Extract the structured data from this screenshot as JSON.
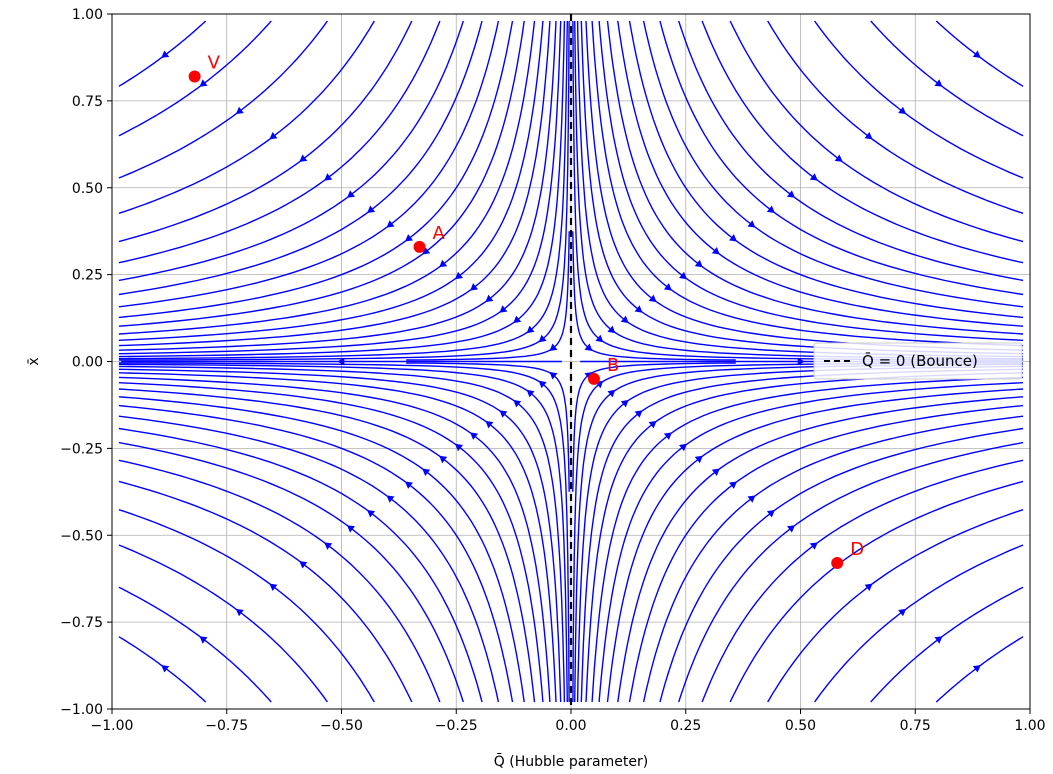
{
  "chart_data": {
    "type": "streamplot",
    "title": "",
    "xlabel": "Q̄ (Hubble parameter)",
    "ylabel": "x̄",
    "xlim": [
      -1.0,
      1.0
    ],
    "ylim": [
      -1.0,
      1.0
    ],
    "x_ticks": [
      "−1.00",
      "−0.75",
      "−0.50",
      "−0.25",
      "0.00",
      "0.25",
      "0.50",
      "0.75",
      "1.00"
    ],
    "y_ticks": [
      "−1.00",
      "−0.75",
      "−0.50",
      "−0.25",
      "0.00",
      "0.25",
      "0.50",
      "0.75",
      "1.00"
    ],
    "x_tick_values": [
      -1.0,
      -0.75,
      -0.5,
      -0.25,
      0.0,
      0.25,
      0.5,
      0.75,
      1.0
    ],
    "y_tick_values": [
      -1.0,
      -0.75,
      -0.5,
      -0.25,
      0.0,
      0.25,
      0.5,
      0.75,
      1.0
    ],
    "grid": true,
    "stream_color": "#0000ff",
    "bounce_line": {
      "x": 0.0,
      "style": "dashed",
      "color": "#000000"
    },
    "legend": {
      "placement": "center-right",
      "entries": [
        {
          "label": "Q̄ = 0 (Bounce)",
          "style": "dashed",
          "color": "#000000"
        }
      ]
    },
    "points": [
      {
        "label": "V",
        "x": -0.82,
        "y": 0.82,
        "color": "#ff0000"
      },
      {
        "label": "A",
        "x": -0.33,
        "y": 0.33,
        "color": "#ff0000"
      },
      {
        "label": "B",
        "x": 0.05,
        "y": -0.05,
        "color": "#ff0000"
      },
      {
        "label": "D",
        "x": 0.58,
        "y": -0.58,
        "color": "#ff0000"
      }
    ]
  }
}
